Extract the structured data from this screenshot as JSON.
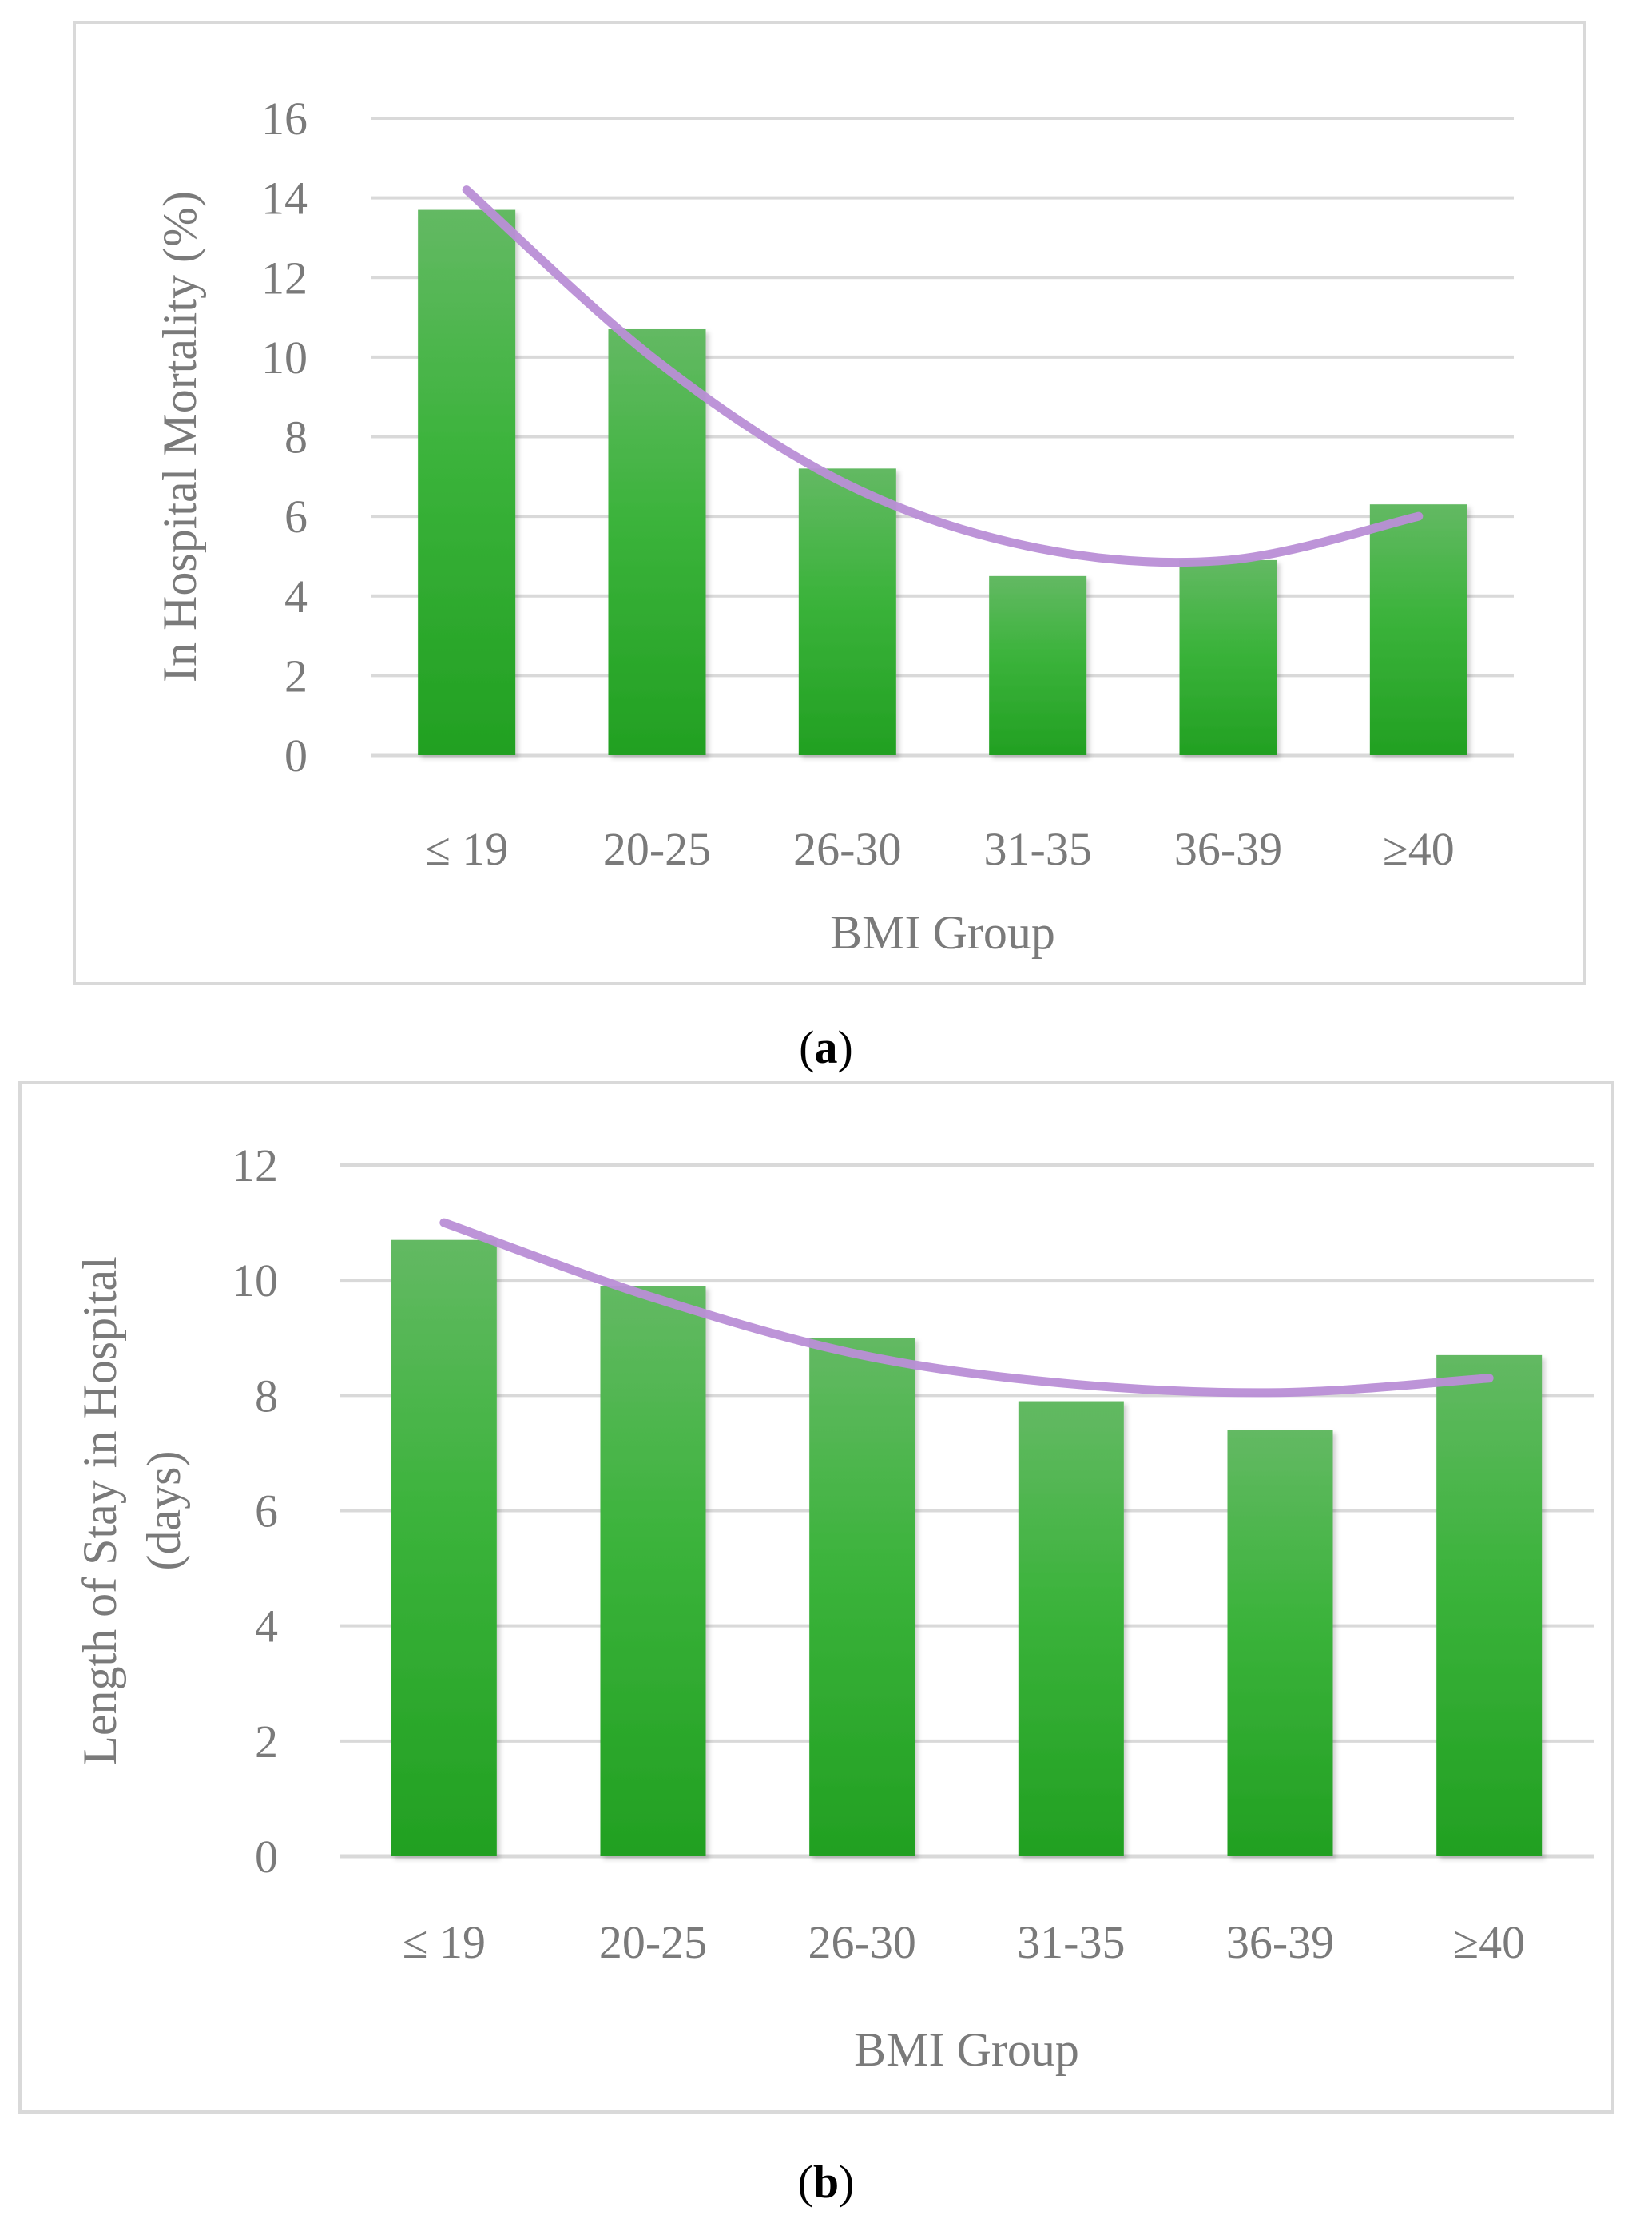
{
  "colors": {
    "bar_top": "#63b963",
    "bar_mid": "#3bb33b",
    "bar_bottom": "#22a022",
    "trend": "#b98ed6",
    "grid": "#d9d9d9",
    "frame": "#d9d9d9",
    "text": "#7a7a7a"
  },
  "chart_data": [
    {
      "type": "bar",
      "panel_label": "a",
      "categories": [
        "≤ 19",
        "20-25",
        "26-30",
        "31-35",
        "36-39",
        "≥40"
      ],
      "values": [
        13.7,
        10.7,
        7.2,
        4.5,
        4.9,
        6.3
      ],
      "trendline": {
        "type": "polynomial",
        "order": 2,
        "values": [
          14.2,
          9.9,
          6.8,
          5.2,
          4.9,
          6.0
        ]
      },
      "title": "",
      "xlabel": "BMI Group",
      "ylabel_lines": [
        "In Hospital Mortality (%)"
      ],
      "ylim": [
        0,
        16
      ],
      "yticks": [
        0,
        2,
        4,
        6,
        8,
        10,
        12,
        14,
        16
      ],
      "grid": true,
      "legend": "none"
    },
    {
      "type": "bar",
      "panel_label": "b",
      "categories": [
        "≤ 19",
        "20-25",
        "26-30",
        "31-35",
        "36-39",
        "≥40"
      ],
      "values": [
        10.7,
        9.9,
        9.0,
        7.9,
        7.4,
        8.7
      ],
      "trendline": {
        "type": "polynomial",
        "order": 2,
        "values": [
          11.0,
          9.7,
          8.7,
          8.2,
          8.05,
          8.3
        ]
      },
      "title": "",
      "xlabel": "BMI Group",
      "ylabel_lines": [
        "Length of Stay in Hospital",
        "(days)"
      ],
      "ylim": [
        0,
        12
      ],
      "yticks": [
        0,
        2,
        4,
        6,
        8,
        10,
        12
      ],
      "grid": true,
      "legend": "none"
    }
  ]
}
